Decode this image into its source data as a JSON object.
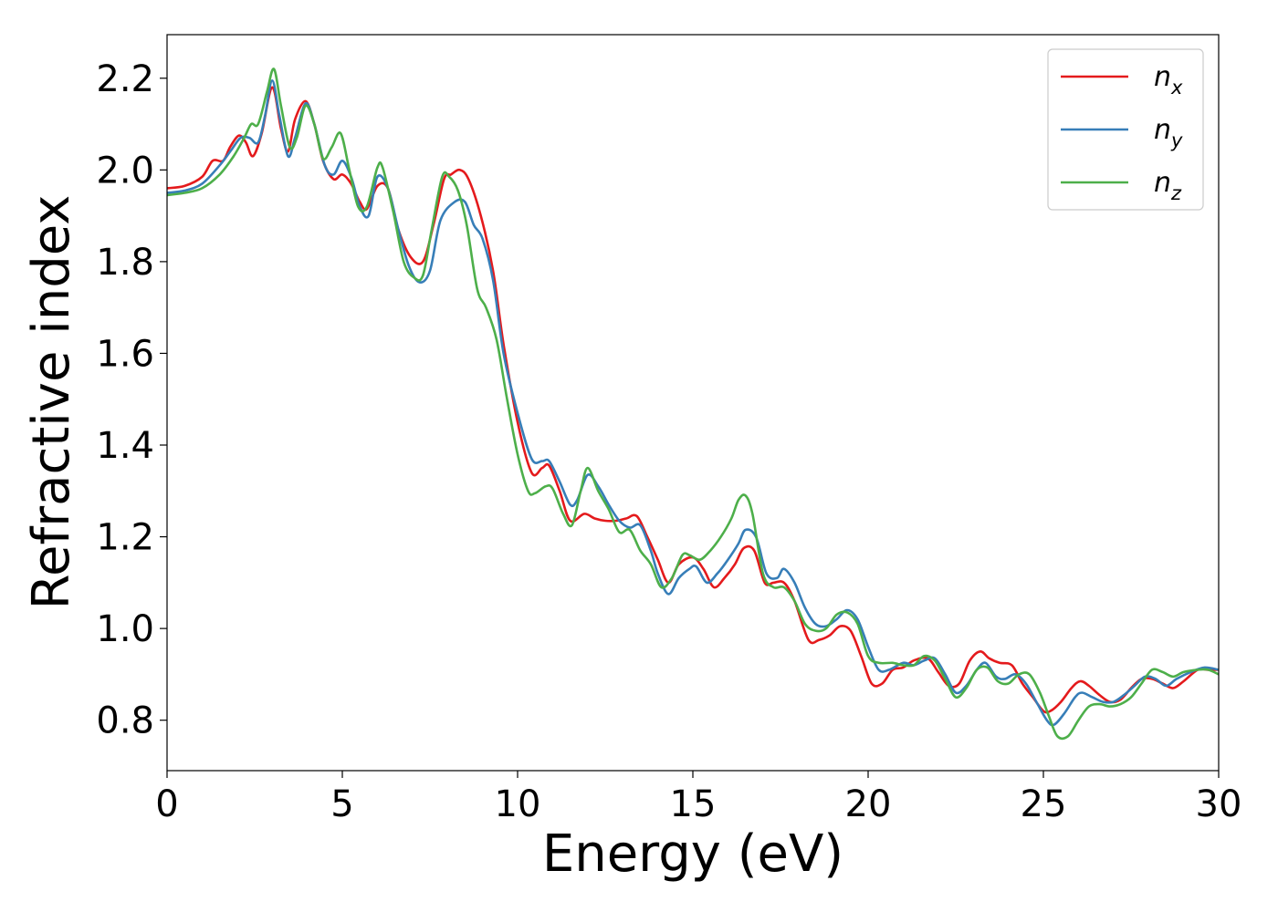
{
  "chart_data": {
    "type": "line",
    "title": "",
    "xlabel": "Energy (eV)",
    "ylabel": "Refractive index",
    "xlim": [
      0,
      30
    ],
    "ylim": [
      0.69,
      2.295
    ],
    "xticks": [
      0,
      5,
      10,
      15,
      20,
      25,
      30
    ],
    "yticks": [
      0.8,
      1.0,
      1.2,
      1.4,
      1.6,
      1.8,
      2.0,
      2.2
    ],
    "grid": false,
    "legend_position": "top-right",
    "series": [
      {
        "name": "n",
        "sub": "x",
        "color": "#e41a1c",
        "x": [
          0,
          0.5,
          1.0,
          1.3,
          1.6,
          1.8,
          2.05,
          2.25,
          2.45,
          2.7,
          3.0,
          3.25,
          3.45,
          3.65,
          3.95,
          4.2,
          4.45,
          4.75,
          5.0,
          5.25,
          5.5,
          5.7,
          6.0,
          6.3,
          6.6,
          6.95,
          7.3,
          7.6,
          7.9,
          8.1,
          8.35,
          8.6,
          8.95,
          9.3,
          9.6,
          10.0,
          10.4,
          10.7,
          10.9,
          11.2,
          11.5,
          11.9,
          12.2,
          12.5,
          12.8,
          13.1,
          13.4,
          13.7,
          14.0,
          14.3,
          14.6,
          15.0,
          15.3,
          15.6,
          15.9,
          16.2,
          16.45,
          16.75,
          17.05,
          17.3,
          17.6,
          17.9,
          18.3,
          18.6,
          18.9,
          19.2,
          19.5,
          19.8,
          20.1,
          20.4,
          20.7,
          21.0,
          21.3,
          21.7,
          22.0,
          22.3,
          22.6,
          22.9,
          23.2,
          23.45,
          23.75,
          24.1,
          24.4,
          24.7,
          25.0,
          25.2,
          25.5,
          25.8,
          26.05,
          26.3,
          26.6,
          26.9,
          27.2,
          27.5,
          27.8,
          28.1,
          28.4,
          28.7,
          29.0,
          29.4,
          29.7,
          30.0
        ],
        "y": [
          1.96,
          1.965,
          1.985,
          2.02,
          2.02,
          2.05,
          2.075,
          2.06,
          2.03,
          2.08,
          2.18,
          2.09,
          2.04,
          2.11,
          2.15,
          2.1,
          2.02,
          1.98,
          1.99,
          1.97,
          1.93,
          1.915,
          1.965,
          1.96,
          1.87,
          1.81,
          1.8,
          1.88,
          1.98,
          1.99,
          2.0,
          1.98,
          1.9,
          1.78,
          1.62,
          1.45,
          1.34,
          1.35,
          1.355,
          1.3,
          1.235,
          1.25,
          1.24,
          1.235,
          1.235,
          1.24,
          1.245,
          1.2,
          1.15,
          1.1,
          1.14,
          1.155,
          1.13,
          1.09,
          1.11,
          1.14,
          1.175,
          1.17,
          1.1,
          1.1,
          1.1,
          1.06,
          0.975,
          0.975,
          0.985,
          1.005,
          0.995,
          0.94,
          0.88,
          0.88,
          0.91,
          0.915,
          0.93,
          0.935,
          0.905,
          0.875,
          0.88,
          0.93,
          0.95,
          0.935,
          0.925,
          0.92,
          0.88,
          0.85,
          0.82,
          0.82,
          0.84,
          0.87,
          0.885,
          0.875,
          0.855,
          0.84,
          0.845,
          0.87,
          0.89,
          0.89,
          0.88,
          0.87,
          0.885,
          0.91,
          0.91,
          0.91
        ]
      },
      {
        "name": "n",
        "sub": "y",
        "color": "#377eb8",
        "x": [
          0,
          0.5,
          1.0,
          1.5,
          1.8,
          2.1,
          2.35,
          2.6,
          2.8,
          3.0,
          3.2,
          3.45,
          3.65,
          3.95,
          4.2,
          4.5,
          4.75,
          5.0,
          5.25,
          5.5,
          5.75,
          6.0,
          6.3,
          6.6,
          6.9,
          7.2,
          7.5,
          7.8,
          8.2,
          8.5,
          8.75,
          9.0,
          9.3,
          9.6,
          10.0,
          10.4,
          10.7,
          10.9,
          11.2,
          11.5,
          11.7,
          12.0,
          12.3,
          12.6,
          12.9,
          13.2,
          13.5,
          13.8,
          14.0,
          14.3,
          14.6,
          14.9,
          15.1,
          15.4,
          15.7,
          16.0,
          16.3,
          16.5,
          16.8,
          17.1,
          17.4,
          17.6,
          17.9,
          18.2,
          18.5,
          18.8,
          19.1,
          19.4,
          19.7,
          20.0,
          20.3,
          20.6,
          21.0,
          21.3,
          21.6,
          21.9,
          22.2,
          22.5,
          22.8,
          23.1,
          23.35,
          23.65,
          23.9,
          24.2,
          24.5,
          24.8,
          25.1,
          25.3,
          25.6,
          25.9,
          26.1,
          26.4,
          26.7,
          27.0,
          27.3,
          27.6,
          27.9,
          28.2,
          28.5,
          28.8,
          29.2,
          29.6,
          30.0
        ],
        "y": [
          1.95,
          1.955,
          1.97,
          2.01,
          2.04,
          2.07,
          2.07,
          2.06,
          2.12,
          2.195,
          2.12,
          2.03,
          2.07,
          2.145,
          2.1,
          2.01,
          1.99,
          2.02,
          1.985,
          1.92,
          1.9,
          1.985,
          1.96,
          1.87,
          1.79,
          1.755,
          1.78,
          1.89,
          1.93,
          1.93,
          1.88,
          1.85,
          1.76,
          1.6,
          1.47,
          1.37,
          1.365,
          1.365,
          1.32,
          1.27,
          1.28,
          1.335,
          1.31,
          1.27,
          1.235,
          1.22,
          1.225,
          1.17,
          1.12,
          1.075,
          1.11,
          1.13,
          1.135,
          1.1,
          1.12,
          1.15,
          1.185,
          1.215,
          1.2,
          1.12,
          1.11,
          1.13,
          1.1,
          1.045,
          1.01,
          1.005,
          1.02,
          1.04,
          1.02,
          0.96,
          0.91,
          0.91,
          0.925,
          0.92,
          0.93,
          0.935,
          0.9,
          0.86,
          0.875,
          0.91,
          0.925,
          0.895,
          0.89,
          0.9,
          0.88,
          0.84,
          0.8,
          0.79,
          0.815,
          0.85,
          0.86,
          0.85,
          0.84,
          0.84,
          0.855,
          0.875,
          0.895,
          0.89,
          0.875,
          0.89,
          0.905,
          0.915,
          0.91
        ]
      },
      {
        "name": "n",
        "sub": "z",
        "color": "#4daf4a",
        "x": [
          0,
          0.5,
          1.0,
          1.5,
          1.9,
          2.2,
          2.4,
          2.6,
          2.85,
          3.05,
          3.25,
          3.5,
          3.7,
          3.95,
          4.2,
          4.45,
          4.7,
          4.95,
          5.2,
          5.45,
          5.7,
          6.0,
          6.15,
          6.45,
          6.75,
          7.05,
          7.3,
          7.55,
          7.85,
          8.05,
          8.3,
          8.55,
          8.85,
          9.1,
          9.4,
          9.7,
          10.0,
          10.3,
          10.5,
          10.8,
          11.0,
          11.3,
          11.55,
          11.8,
          12.0,
          12.3,
          12.6,
          12.9,
          13.2,
          13.5,
          13.8,
          14.1,
          14.4,
          14.7,
          14.9,
          15.2,
          15.5,
          15.8,
          16.1,
          16.3,
          16.5,
          16.7,
          17.0,
          17.3,
          17.6,
          17.9,
          18.2,
          18.5,
          18.8,
          19.1,
          19.4,
          19.7,
          20.0,
          20.3,
          20.7,
          21.0,
          21.3,
          21.6,
          21.9,
          22.2,
          22.5,
          22.8,
          23.1,
          23.4,
          23.7,
          24.0,
          24.3,
          24.6,
          24.9,
          25.15,
          25.4,
          25.7,
          26.0,
          26.3,
          26.6,
          26.9,
          27.2,
          27.5,
          27.8,
          28.1,
          28.4,
          28.7,
          29.0,
          29.4,
          29.7,
          30.0
        ],
        "y": [
          1.945,
          1.95,
          1.96,
          1.99,
          2.03,
          2.07,
          2.1,
          2.1,
          2.17,
          2.22,
          2.14,
          2.05,
          2.07,
          2.14,
          2.1,
          2.025,
          2.05,
          2.08,
          2.0,
          1.92,
          1.92,
          2.005,
          2.005,
          1.91,
          1.8,
          1.765,
          1.77,
          1.87,
          1.985,
          1.985,
          1.955,
          1.88,
          1.74,
          1.7,
          1.63,
          1.5,
          1.38,
          1.3,
          1.295,
          1.31,
          1.305,
          1.25,
          1.225,
          1.3,
          1.35,
          1.3,
          1.26,
          1.21,
          1.215,
          1.17,
          1.14,
          1.09,
          1.11,
          1.16,
          1.16,
          1.15,
          1.17,
          1.2,
          1.24,
          1.28,
          1.29,
          1.25,
          1.12,
          1.09,
          1.09,
          1.06,
          1.01,
          0.995,
          1.0,
          1.03,
          1.035,
          1.01,
          0.94,
          0.925,
          0.925,
          0.92,
          0.92,
          0.94,
          0.93,
          0.89,
          0.85,
          0.87,
          0.91,
          0.915,
          0.885,
          0.88,
          0.9,
          0.9,
          0.86,
          0.81,
          0.765,
          0.765,
          0.8,
          0.83,
          0.835,
          0.83,
          0.835,
          0.85,
          0.88,
          0.91,
          0.905,
          0.895,
          0.905,
          0.91,
          0.91,
          0.9
        ]
      }
    ]
  }
}
